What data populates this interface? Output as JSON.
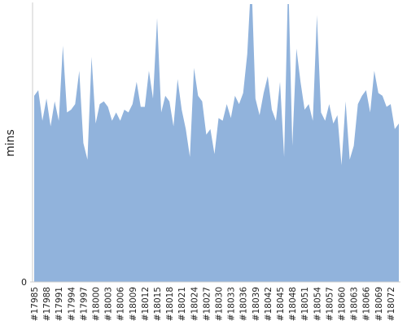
{
  "chart_data": {
    "type": "area",
    "ylabel": "mins",
    "color": "#91b3dc",
    "categories": [
      "#17985",
      null,
      null,
      "#17988",
      null,
      null,
      "#17991",
      null,
      null,
      "#17994",
      null,
      null,
      "#17997",
      null,
      null,
      "#18000",
      null,
      null,
      "#18003",
      null,
      null,
      "#18006",
      null,
      null,
      "#18009",
      null,
      null,
      "#18012",
      null,
      null,
      "#18015",
      null,
      null,
      "#18018",
      null,
      null,
      "#18021",
      null,
      null,
      "#18024",
      null,
      null,
      "#18027",
      null,
      null,
      "#18030",
      null,
      null,
      "#18033",
      null,
      null,
      "#18036",
      null,
      null,
      "#18039",
      null,
      null,
      "#18042",
      null,
      null,
      "#18045",
      null,
      null,
      "#18048",
      null,
      null,
      "#18051",
      null,
      null,
      "#18054",
      null,
      null,
      "#18057",
      null,
      null,
      "#18060",
      null,
      null,
      "#18063",
      null,
      null,
      "#18066",
      null,
      null,
      "#18069",
      null,
      null,
      "#18072",
      null,
      null
    ],
    "values": [
      67,
      69,
      58,
      66,
      56,
      65,
      58,
      85,
      61,
      62,
      64,
      76,
      50,
      44,
      81,
      57,
      64,
      65,
      63,
      58,
      61,
      58,
      62,
      61,
      64,
      72,
      63,
      63,
      76,
      66,
      95,
      61,
      67,
      65,
      56,
      73,
      62,
      55,
      45,
      77,
      67,
      65,
      53,
      55,
      46,
      59,
      58,
      64,
      59,
      67,
      64,
      68,
      82,
      110,
      66,
      60,
      68,
      74,
      62,
      58,
      72,
      45,
      110,
      49,
      84,
      72,
      62,
      64,
      58,
      96,
      61,
      58,
      64,
      57,
      60,
      42,
      65,
      44,
      49,
      64,
      67,
      69,
      61,
      76,
      68,
      67,
      63,
      64,
      55,
      57
    ],
    "ylim": [
      0,
      100
    ],
    "yticks": [
      0
    ]
  }
}
